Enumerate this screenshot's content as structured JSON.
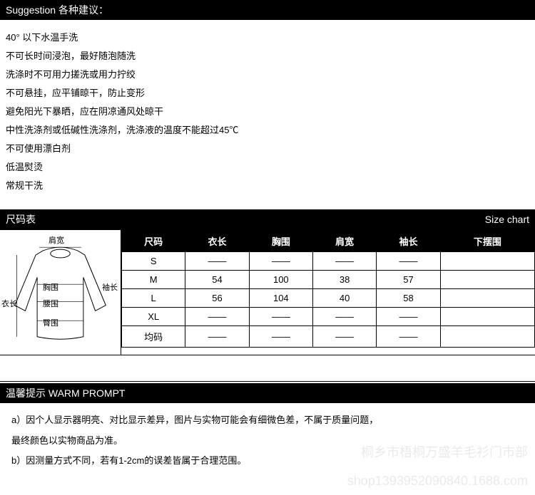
{
  "suggestion_header_en": "Suggestion",
  "suggestion_header_cn": "各种建议：",
  "suggestions": [
    "40° 以下水温手洗",
    "不可长时间浸泡，最好随泡随洗",
    "洗涤时不可用力搓洗或用力拧绞",
    "不可悬挂，应平铺晾干，防止变形",
    "避免阳光下暴晒，应在阴凉通风处晾干",
    "中性洗涤剂或低碱性洗涤剂，洗涤液的温度不能超过45℃",
    "不可使用漂白剂",
    "低温熨烫",
    "常规干洗"
  ],
  "size_chart_left": "尺码表",
  "size_chart_right": "Size chart",
  "diagram_labels": {
    "shoulder": "肩宽",
    "bust": "胸围",
    "sleeve": "袖长",
    "length": "衣长",
    "waist": "腰围",
    "hip": "臀围"
  },
  "table": {
    "headers": [
      "尺码",
      "衣长",
      "胸围",
      "肩宽",
      "袖长",
      "下摆围"
    ],
    "rows": [
      [
        "S",
        "——",
        "——",
        "——",
        "——",
        ""
      ],
      [
        "M",
        "54",
        "100",
        "38",
        "57",
        ""
      ],
      [
        "L",
        "56",
        "104",
        "40",
        "58",
        ""
      ],
      [
        "XL",
        "——",
        "——",
        "——",
        "——",
        ""
      ],
      [
        "均码",
        "——",
        "——",
        "——",
        "——",
        ""
      ]
    ]
  },
  "warm_prompt_header": "温馨提示 WARM PROMPT",
  "warm_prompts": [
    "a）因个人显示器明亮、对比显示差异，图片与实物可能会有细微色差，不属于质量问题，",
    "最终颜色以实物商品为准。",
    "b）因测量方式不同，若有1-2cm的误差皆属于合理范围。"
  ],
  "watermark_line1": "桐乡市梧桐万盛羊毛衫门市部",
  "watermark_line2": "shop1393952090840.1688.com"
}
